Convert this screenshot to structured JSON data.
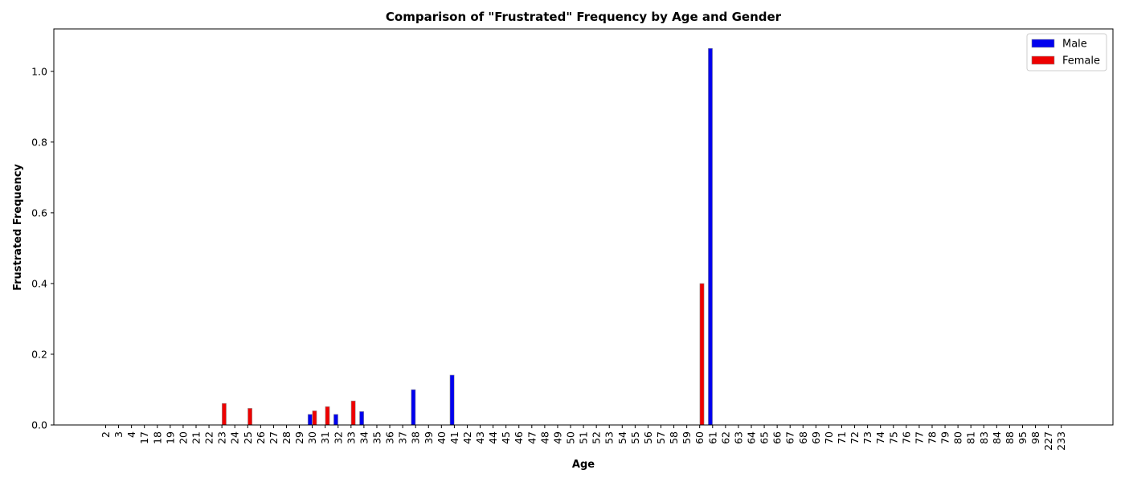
{
  "chart_data": {
    "type": "bar",
    "title": "Comparison of \"Frustrated\" Frequency by Age and Gender",
    "xlabel": "Age",
    "ylabel": "Frustrated Frequency",
    "ylim": [
      0,
      1.12
    ],
    "yticks": [
      0.0,
      0.2,
      0.4,
      0.6,
      0.8,
      1.0
    ],
    "ytick_labels": [
      "0.0",
      "0.2",
      "0.4",
      "0.6",
      "0.8",
      "1.0"
    ],
    "grid": false,
    "legend_position": "top-right",
    "categories": [
      "2",
      "3",
      "4",
      "17",
      "18",
      "19",
      "20",
      "21",
      "22",
      "23",
      "24",
      "25",
      "26",
      "27",
      "28",
      "29",
      "30",
      "31",
      "32",
      "33",
      "34",
      "35",
      "36",
      "37",
      "38",
      "39",
      "40",
      "41",
      "42",
      "43",
      "44",
      "45",
      "46",
      "47",
      "48",
      "49",
      "50",
      "51",
      "52",
      "53",
      "54",
      "55",
      "56",
      "57",
      "58",
      "59",
      "60",
      "61",
      "62",
      "63",
      "64",
      "65",
      "66",
      "67",
      "68",
      "69",
      "70",
      "71",
      "72",
      "73",
      "74",
      "75",
      "76",
      "77",
      "78",
      "79",
      "80",
      "81",
      "83",
      "84",
      "88",
      "95",
      "98",
      "227",
      "233"
    ],
    "series": [
      {
        "name": "Male",
        "color": "#0000ee",
        "values": [
          0,
          0,
          0,
          0,
          0,
          0,
          0,
          0,
          0,
          0,
          0,
          0,
          0,
          0,
          0,
          0,
          0.03,
          0,
          0.03,
          0,
          0.038,
          0,
          0,
          0,
          0.1,
          0,
          0,
          0.141,
          0,
          0,
          0,
          0,
          0,
          0,
          0,
          0,
          0,
          0,
          0,
          0,
          0,
          0,
          0,
          0,
          0,
          0,
          0,
          1.065,
          0,
          0,
          0,
          0,
          0,
          0,
          0,
          0,
          0,
          0,
          0,
          0,
          0,
          0,
          0,
          0,
          0,
          0,
          0,
          0,
          0,
          0,
          0,
          0,
          0,
          0,
          0
        ]
      },
      {
        "name": "Female",
        "color": "#ee0000",
        "values": [
          0,
          0,
          0,
          0,
          0,
          0,
          0,
          0,
          0,
          0.061,
          0,
          0.047,
          0,
          0,
          0,
          0,
          0.04,
          0.052,
          0,
          0.068,
          0,
          0,
          0,
          0,
          0,
          0,
          0,
          0,
          0,
          0,
          0,
          0,
          0,
          0,
          0,
          0,
          0,
          0,
          0,
          0,
          0,
          0,
          0,
          0,
          0,
          0,
          0.4,
          0,
          0,
          0,
          0,
          0,
          0,
          0,
          0,
          0,
          0,
          0,
          0,
          0,
          0,
          0,
          0,
          0,
          0,
          0,
          0,
          0,
          0,
          0,
          0,
          0,
          0,
          0,
          0
        ]
      }
    ]
  }
}
